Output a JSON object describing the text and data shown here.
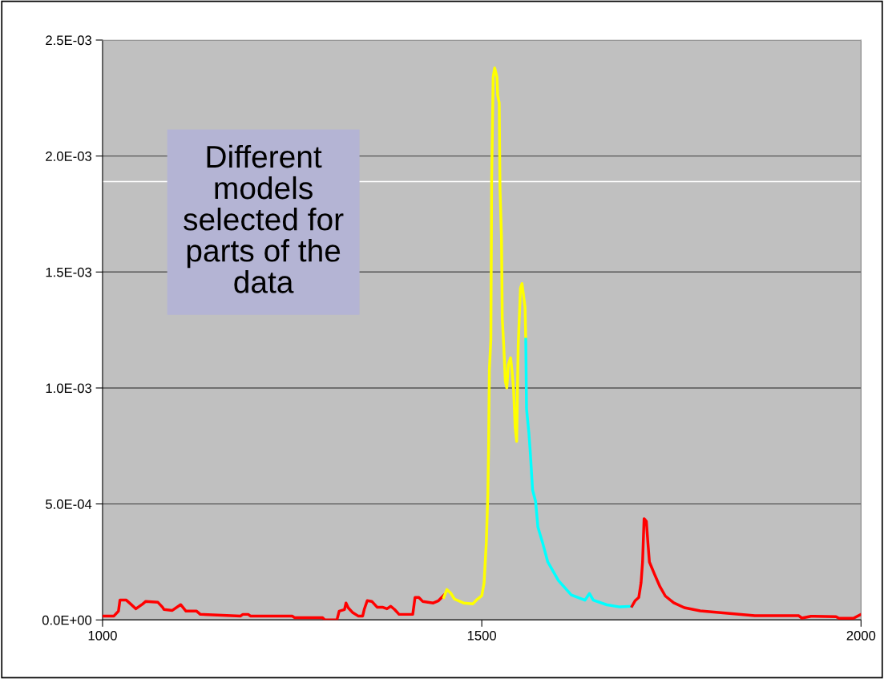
{
  "chart_data": {
    "type": "line",
    "xlim": [
      1000,
      2000
    ],
    "xticks": [
      1000,
      1500,
      2000
    ],
    "ylim": [
      0,
      0.0025
    ],
    "yticks": [
      {
        "value": 0,
        "label": "0.0E+00"
      },
      {
        "value": 0.0005,
        "label": "5.0E-04"
      },
      {
        "value": 0.001,
        "label": "1.0E-03"
      },
      {
        "value": 0.0015,
        "label": "1.5E-03"
      },
      {
        "value": 0.002,
        "label": "2.0E-03"
      },
      {
        "value": 0.0025,
        "label": "2.5E-03"
      }
    ],
    "grid": "y",
    "marker": "none",
    "line_style": "solid",
    "ref_lines": [
      {
        "axis": "y",
        "value": 0.00189,
        "color": "#ffffff"
      }
    ],
    "annotations": [
      "Different\nmodels\nselected for\nparts of the\ndata"
    ],
    "series": [
      {
        "color": "#ff0000",
        "x": [
          1000,
          1015,
          1021,
          1023,
          1031,
          1037,
          1044,
          1053,
          1057,
          1073,
          1079,
          1081,
          1092,
          1103,
          1110,
          1124,
          1129,
          1182,
          1185,
          1192,
          1195,
          1250,
          1253,
          1290,
          1293,
          1309,
          1312,
          1319,
          1321,
          1324,
          1330,
          1337,
          1343,
          1345,
          1349,
          1355,
          1362,
          1369,
          1375,
          1380,
          1385,
          1391,
          1409,
          1412,
          1417,
          1422,
          1436,
          1443,
          1450
        ],
        "values": [
          1.7e-05,
          1.7e-05,
          3.8e-05,
          8.6e-05,
          8.6e-05,
          6.9e-05,
          4.8e-05,
          6.9e-05,
          8e-05,
          7.6e-05,
          5.5e-05,
          4.5e-05,
          4.1e-05,
          6.6e-05,
          3.8e-05,
          3.8e-05,
          2.4e-05,
          1.7e-05,
          2.4e-05,
          2.4e-05,
          1.7e-05,
          1.7e-05,
          1e-05,
          1e-05,
          0,
          0,
          3.8e-05,
          4.5e-05,
          7.3e-05,
          5.2e-05,
          3.1e-05,
          1.7e-05,
          1.7e-05,
          4.5e-05,
          8.3e-05,
          8e-05,
          5.5e-05,
          5.5e-05,
          4.8e-05,
          5.9e-05,
          4.5e-05,
          2.4e-05,
          2.4e-05,
          9.7e-05,
          9.7e-05,
          8e-05,
          7.3e-05,
          8.3e-05,
          0.000107
        ]
      },
      {
        "color": "#ffff00",
        "x": [
          1450,
          1454,
          1459,
          1464,
          1476,
          1488,
          1493,
          1500,
          1503,
          1506,
          1508,
          1509,
          1510,
          1512,
          1513,
          1515,
          1517,
          1520,
          1521,
          1523,
          1524,
          1526,
          1527,
          1529,
          1531,
          1533,
          1535,
          1538,
          1540,
          1542,
          1544,
          1546,
          1548,
          1551,
          1553,
          1557,
          1558
        ],
        "values": [
          9.7e-05,
          0.000131,
          0.000116,
          9e-05,
          7.3e-05,
          6.9e-05,
          8.6e-05,
          0.000104,
          0.000159,
          0.000335,
          0.000543,
          0.000748,
          0.00108,
          0.00121,
          0.00189,
          0.00234,
          0.00238,
          0.00234,
          0.00226,
          0.00223,
          0.00186,
          0.00165,
          0.0013,
          0.00118,
          0.00103,
          0.001,
          0.0011,
          0.00113,
          0.00107,
          0.00099,
          0.00083,
          0.00077,
          0.00118,
          0.00143,
          0.00145,
          0.00135,
          0.00121
        ]
      },
      {
        "color": "#00ffff",
        "x": [
          1558,
          1559,
          1562,
          1564,
          1567,
          1571,
          1574,
          1580,
          1587,
          1601,
          1618,
          1636,
          1642,
          1647,
          1665,
          1682,
          1698
        ],
        "values": [
          0.00121,
          0.00091,
          0.00081,
          0.00072,
          0.00056,
          0.00051,
          0.0004,
          0.000335,
          0.00025,
          0.00017,
          0.000108,
          8.5e-05,
          0.000114,
          8.5e-05,
          6.5e-05,
          5.6e-05,
          5.9e-05
        ]
      },
      {
        "color": "#ff0000",
        "x": [
          1698,
          1702,
          1707,
          1710,
          1712,
          1714,
          1717,
          1719,
          1721,
          1728,
          1735,
          1742,
          1753,
          1767,
          1788,
          1827,
          1860,
          1918,
          1922,
          1934,
          1967,
          1971,
          1990,
          1999
        ],
        "values": [
          5.9e-05,
          8.2e-05,
          9.7e-05,
          0.00016,
          0.00025,
          0.000437,
          0.000425,
          0.000333,
          0.00025,
          0.000195,
          0.000143,
          0.000103,
          7.4e-05,
          5.3e-05,
          3.9e-05,
          2.8e-05,
          1.8e-05,
          1.8e-05,
          8e-06,
          1.6e-05,
          1.4e-05,
          7e-06,
          7e-06,
          2.2e-05
        ]
      }
    ]
  }
}
